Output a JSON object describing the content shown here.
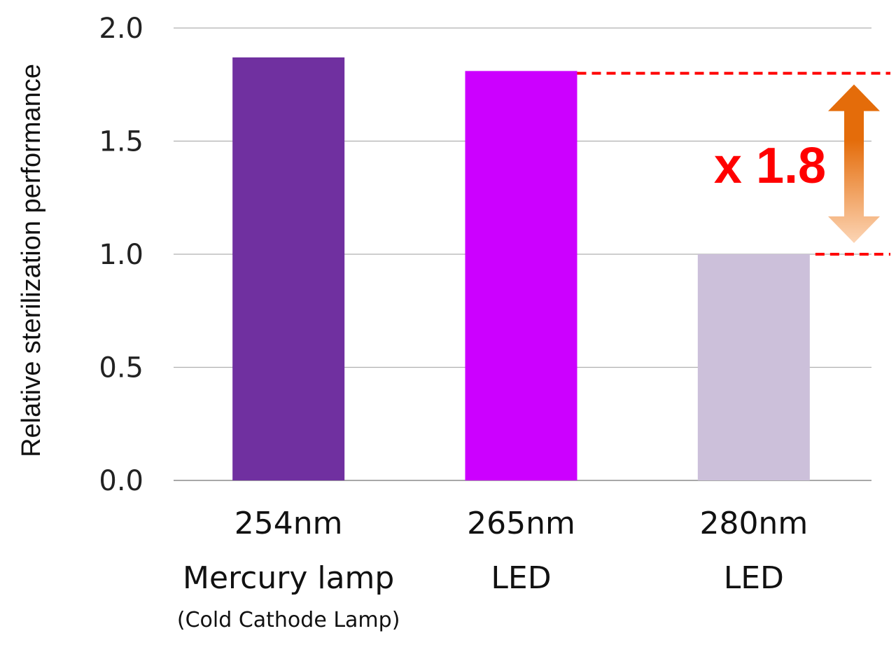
{
  "chart_data": {
    "type": "bar",
    "ylabel": "Relative sterilization performance",
    "ylim": [
      0,
      2.0
    ],
    "yticks": [
      "0.0",
      "0.5",
      "1.0",
      "1.5",
      "2.0"
    ],
    "grid": true,
    "categories": [
      {
        "line1": "254nm",
        "line2": "Mercury lamp",
        "line3": "(Cold Cathode Lamp)",
        "value": 1.87,
        "color": "#7030a0"
      },
      {
        "line1": "265nm",
        "line2": "LED",
        "line3": "",
        "value": 1.81,
        "color": "#cc00ff"
      },
      {
        "line1": "280nm",
        "line2": "LED",
        "line3": "",
        "value": 1.0,
        "color": "#ccc0da"
      }
    ],
    "annotation": {
      "text": "x 1.8",
      "reference_high": 1.8,
      "reference_low": 1.0,
      "line_color": "#ff0000",
      "arrow_color_top": "#e46c0a",
      "arrow_color_bottom": "#fcd5b5"
    }
  }
}
